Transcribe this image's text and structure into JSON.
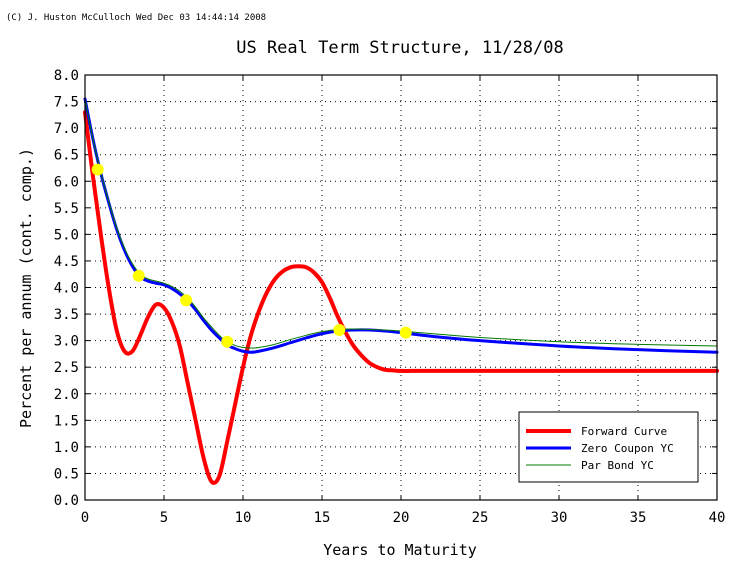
{
  "copyright": "(C) J. Huston McCulloch Wed Dec 03 14:44:14 2008",
  "chart_data": {
    "type": "line",
    "title": "US Real Term Structure, 11/28/08",
    "xlabel": "Years to Maturity",
    "ylabel": "Percent per annum (cont. comp.)",
    "xlim": [
      0,
      40
    ],
    "ylim": [
      0,
      8
    ],
    "xticks": [
      0,
      5,
      10,
      15,
      20,
      25,
      30,
      35,
      40
    ],
    "yticks": [
      0.0,
      0.5,
      1.0,
      1.5,
      2.0,
      2.5,
      3.0,
      3.5,
      4.0,
      4.5,
      5.0,
      5.5,
      6.0,
      6.5,
      7.0,
      7.5,
      8.0
    ],
    "grid": true,
    "legend_position": "bottom-right",
    "series": [
      {
        "name": "Forward Curve",
        "color": "#ff0000",
        "x": [
          0,
          0.5,
          1,
          1.5,
          2,
          2.5,
          3,
          3.5,
          4,
          4.5,
          5,
          5.5,
          6,
          6.5,
          7,
          7.5,
          8,
          8.5,
          9,
          9.5,
          10,
          10.5,
          11,
          11.5,
          12,
          12.5,
          13,
          13.5,
          14,
          14.5,
          15,
          15.5,
          16,
          16.5,
          17,
          17.5,
          18,
          18.5,
          19,
          19.5,
          20,
          21,
          22,
          25,
          30,
          35,
          40
        ],
        "values": [
          7.3,
          6.1,
          5.0,
          4.0,
          3.2,
          2.8,
          2.8,
          3.1,
          3.45,
          3.68,
          3.62,
          3.35,
          2.9,
          2.2,
          1.5,
          0.8,
          0.35,
          0.45,
          1.1,
          1.8,
          2.5,
          3.1,
          3.55,
          3.9,
          4.15,
          4.3,
          4.38,
          4.4,
          4.38,
          4.28,
          4.1,
          3.8,
          3.45,
          3.15,
          2.9,
          2.72,
          2.58,
          2.5,
          2.45,
          2.44,
          2.43,
          2.43,
          2.43,
          2.43,
          2.43,
          2.43,
          2.43
        ]
      },
      {
        "name": "Zero Coupon YC",
        "color": "#0000ff",
        "x": [
          0,
          0.5,
          1,
          1.5,
          2,
          2.5,
          3,
          3.5,
          4,
          4.5,
          5,
          5.5,
          6,
          6.5,
          7,
          7.5,
          8,
          8.5,
          9,
          9.5,
          10,
          10.5,
          11,
          12,
          13,
          14,
          15,
          16,
          17,
          18,
          19,
          20,
          22,
          25,
          30,
          35,
          40
        ],
        "values": [
          7.55,
          6.8,
          6.15,
          5.6,
          5.1,
          4.7,
          4.4,
          4.2,
          4.12,
          4.08,
          4.05,
          3.98,
          3.88,
          3.75,
          3.58,
          3.38,
          3.2,
          3.05,
          2.92,
          2.85,
          2.8,
          2.78,
          2.8,
          2.87,
          2.96,
          3.05,
          3.13,
          3.18,
          3.2,
          3.2,
          3.18,
          3.15,
          3.08,
          3.0,
          2.9,
          2.83,
          2.78
        ]
      },
      {
        "name": "Par Bond YC",
        "color": "#007a00",
        "x": [
          0,
          0.5,
          1,
          1.5,
          2,
          2.5,
          3,
          3.5,
          4,
          4.5,
          5,
          5.5,
          6,
          6.5,
          7,
          7.5,
          8,
          8.5,
          9,
          9.5,
          10,
          10.5,
          11,
          12,
          13,
          14,
          15,
          16,
          17,
          18,
          19,
          20,
          22,
          25,
          30,
          35,
          40
        ],
        "values": [
          7.55,
          6.8,
          6.16,
          5.62,
          5.13,
          4.74,
          4.45,
          4.25,
          4.16,
          4.12,
          4.08,
          4.02,
          3.93,
          3.8,
          3.63,
          3.43,
          3.26,
          3.1,
          2.98,
          2.91,
          2.87,
          2.86,
          2.87,
          2.93,
          3.02,
          3.1,
          3.17,
          3.21,
          3.22,
          3.21,
          3.2,
          3.18,
          3.13,
          3.06,
          2.98,
          2.93,
          2.9
        ]
      }
    ],
    "markers": {
      "color": "#ffff00",
      "x": [
        0.8,
        3.4,
        6.4,
        9.0,
        16.1,
        20.3
      ],
      "values": [
        6.22,
        4.22,
        3.76,
        2.98,
        3.2,
        3.15
      ]
    }
  }
}
